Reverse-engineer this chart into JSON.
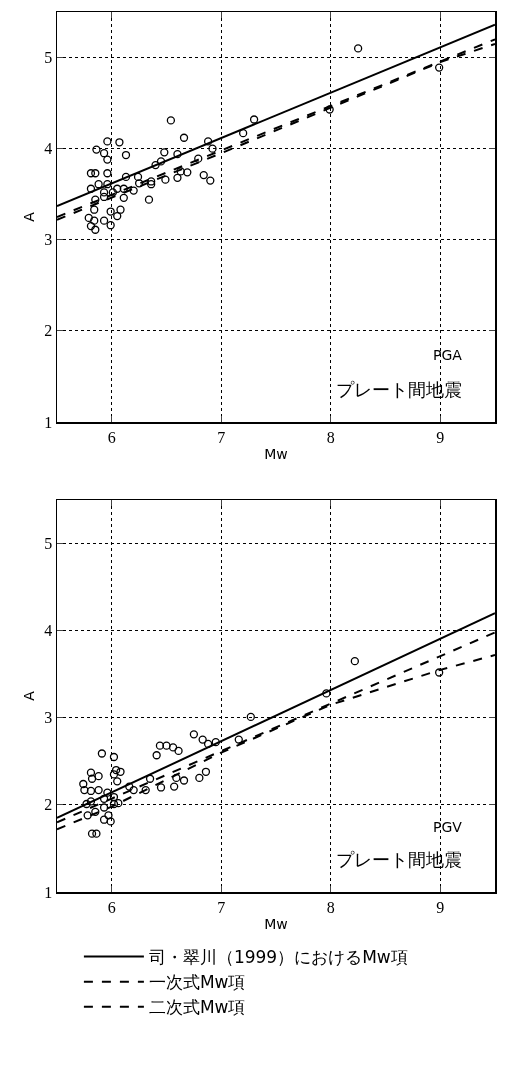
{
  "chart_data": [
    {
      "type": "scatter",
      "xlabel": "Mw",
      "ylabel": "A",
      "xlim": [
        5.5,
        9.5
      ],
      "ylim": [
        1,
        5.5
      ],
      "xticks": [
        6,
        7,
        8,
        9
      ],
      "yticks": [
        1,
        2,
        3,
        4,
        5
      ],
      "grid": true,
      "legend": false,
      "marker": "circle",
      "annotations": [
        "PGA",
        "プレート間地震"
      ],
      "series": [
        {
          "color": "#000000",
          "x": [
            6.54,
            6.66,
            7.3,
            7.2,
            6.88,
            6.92,
            6.79,
            6.84,
            6.9,
            6.69,
            6.63,
            6.6,
            6.49,
            6.6,
            6.48,
            6.45,
            6.4,
            6.36,
            6.36,
            6.34,
            6.24,
            6.25,
            6.2,
            6.13,
            6.11,
            6.11,
            6.08,
            5.99,
            6.05,
            5.99,
            5.93,
            5.85,
            5.81,
            5.79,
            5.84,
            5.84,
            5.85,
            5.81,
            5.81,
            5.85,
            5.96,
            5.96,
            5.88,
            5.93,
            6.01,
            6.05,
            5.93,
            6.13,
            5.96,
            5.93,
            5.86,
            5.96,
            6.07,
            8.25,
            8.99,
            7.99
          ],
          "values": [
            4.31,
            4.12,
            4.32,
            4.17,
            4.08,
            4.0,
            3.89,
            3.71,
            3.65,
            3.74,
            3.75,
            3.68,
            3.66,
            3.94,
            3.96,
            3.86,
            3.82,
            3.64,
            3.61,
            3.44,
            3.69,
            3.62,
            3.54,
            3.69,
            3.56,
            3.46,
            3.33,
            3.31,
            3.26,
            3.16,
            3.21,
            3.11,
            3.15,
            3.24,
            3.21,
            3.33,
            3.44,
            3.56,
            3.73,
            3.73,
            3.73,
            3.61,
            3.61,
            3.52,
            3.52,
            3.56,
            3.47,
            3.93,
            3.88,
            3.95,
            3.99,
            4.08,
            4.07,
            5.1,
            4.89,
            4.43
          ]
        },
        {
          "type": "line",
          "color": "#000000",
          "line_style": "solid",
          "marker": "none",
          "x": [
            5.5,
            9.5
          ],
          "values": [
            3.37,
            5.36
          ]
        },
        {
          "type": "line",
          "color": "#000000",
          "line_style": "dashed",
          "marker": "none",
          "x": [
            5.5,
            9.5
          ],
          "values": [
            3.25,
            5.2
          ]
        },
        {
          "type": "line",
          "color": "#000000",
          "line_style": "dashed",
          "marker": "none",
          "x": [
            5.5,
            7,
            8,
            9,
            9.5
          ],
          "values": [
            3.22,
            3.95,
            4.45,
            4.95,
            5.15
          ]
        }
      ]
    },
    {
      "type": "scatter",
      "xlabel": "Mw",
      "ylabel": "A",
      "xlim": [
        5.5,
        9.5
      ],
      "ylim": [
        1,
        5.5
      ],
      "xticks": [
        6,
        7,
        8,
        9
      ],
      "yticks": [
        1,
        2,
        3,
        4,
        5
      ],
      "grid": true,
      "legend": "bottom",
      "marker": "circle",
      "annotations": [
        "PGV",
        "プレート間地震"
      ],
      "series": [
        {
          "color": "#000000",
          "x": [
            7.27,
            7.16,
            6.95,
            6.88,
            6.83,
            6.75,
            6.86,
            6.8,
            6.66,
            6.59,
            6.57,
            6.45,
            6.61,
            6.56,
            6.5,
            6.44,
            6.41,
            6.35,
            6.31,
            6.2,
            6.16,
            6.08,
            6.04,
            6.02,
            5.91,
            6.02,
            6.05,
            5.88,
            5.81,
            5.82,
            5.74,
            5.75,
            5.81,
            5.88,
            5.96,
            6.02,
            5.93,
            5.81,
            5.77,
            6.02,
            6.06,
            5.93,
            5.85,
            5.97,
            5.78,
            5.82,
            5.86,
            5.93,
            5.99,
            8.22,
            8.99,
            7.96
          ],
          "values": [
            3.01,
            2.75,
            2.72,
            2.7,
            2.75,
            2.81,
            2.38,
            2.31,
            2.28,
            2.31,
            2.21,
            2.2,
            2.62,
            2.66,
            2.68,
            2.68,
            2.57,
            2.3,
            2.17,
            2.17,
            2.21,
            2.38,
            2.4,
            2.55,
            2.59,
            2.35,
            2.27,
            2.33,
            2.37,
            2.3,
            2.24,
            2.17,
            2.16,
            2.17,
            2.14,
            2.09,
            2.07,
            2.04,
            2.01,
            2.01,
            2.02,
            1.97,
            1.92,
            1.88,
            1.88,
            1.67,
            1.67,
            1.83,
            1.81,
            3.65,
            3.52,
            3.28
          ]
        },
        {
          "type": "line",
          "name": "司・翠川（1999）におけるMw項",
          "color": "#000000",
          "line_style": "solid",
          "marker": "none",
          "x": [
            5.5,
            9.5
          ],
          "values": [
            1.85,
            4.2
          ]
        },
        {
          "type": "line",
          "name": "一次式Mw項",
          "color": "#000000",
          "line_style": "dashed",
          "marker": "none",
          "x": [
            5.5,
            9.5
          ],
          "values": [
            1.8,
            3.98
          ]
        },
        {
          "type": "line",
          "name": "二次式Mw項",
          "color": "#000000",
          "line_style": "dashed",
          "marker": "none",
          "x": [
            5.5,
            6,
            7,
            8,
            9,
            9.5
          ],
          "values": [
            1.72,
            1.98,
            2.6,
            3.15,
            3.55,
            3.72
          ]
        }
      ]
    }
  ]
}
